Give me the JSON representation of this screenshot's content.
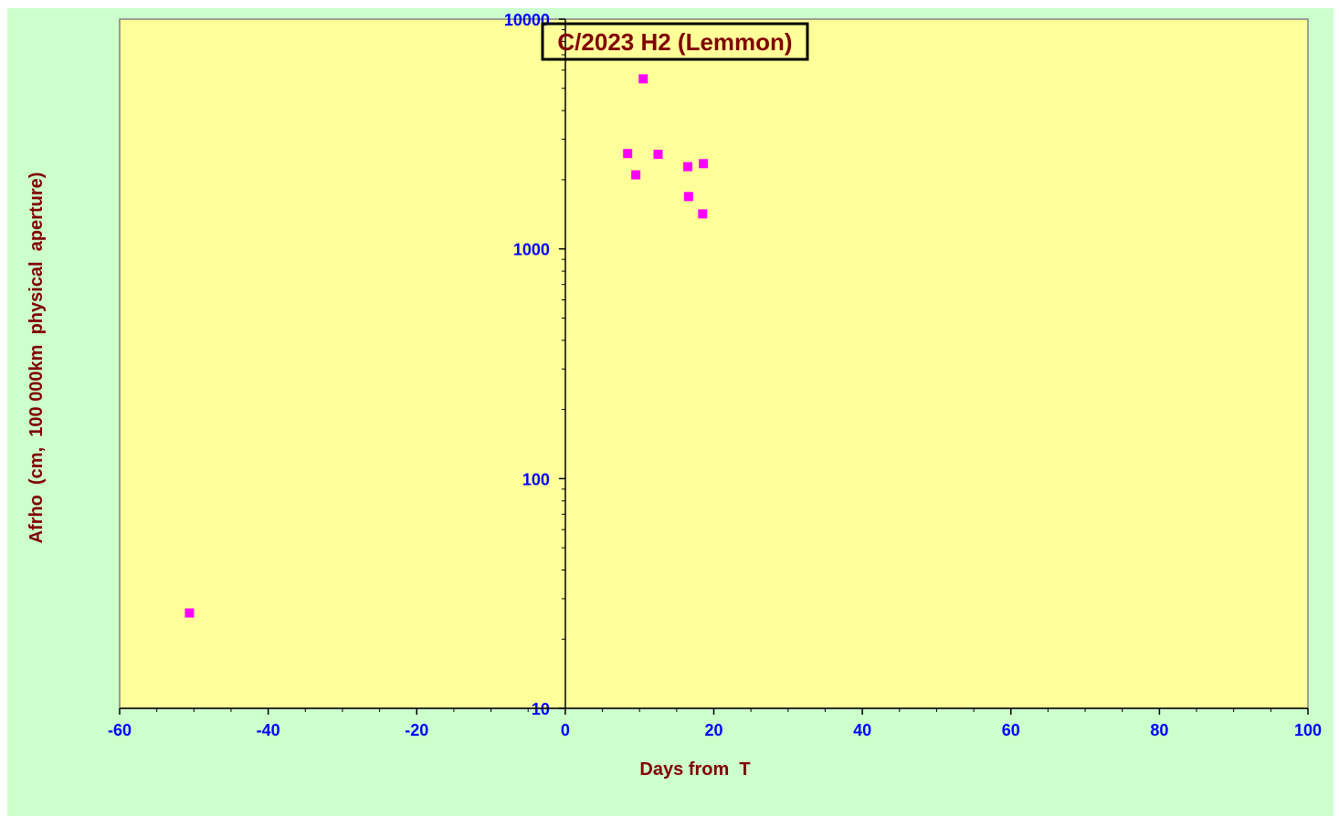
{
  "colors": {
    "outer_background": "#ccffcc",
    "plot_background": "#ffff99",
    "axis_line": "#000000",
    "plot_border": "#808080",
    "tick_label": "#0000ff",
    "axis_title": "#800000",
    "title_text": "#800000",
    "marker": "#ff00ff"
  },
  "chart_data": {
    "type": "scatter",
    "title": "C/2023 H2 (Lemmon)",
    "xlabel": "Days from  T",
    "ylabel": "Afrho  (cm,  100 000km  physical  aperture)",
    "xlim": [
      -60,
      100
    ],
    "ylim": [
      10,
      10000
    ],
    "y_scale": "log",
    "x_ticks": [
      "-60",
      "-40",
      "-20",
      "0",
      "20",
      "40",
      "60",
      "80",
      "100"
    ],
    "y_ticks": [
      "10",
      "100",
      "1000",
      "10000"
    ],
    "grid": false,
    "legend": "none",
    "marker": "square",
    "series": [
      {
        "x": [
          -50.6,
          8.4,
          9.5,
          10.5,
          12.5,
          16.5,
          16.6,
          18.5,
          18.6
        ],
        "y": [
          26,
          2600,
          2100,
          5500,
          2580,
          2280,
          1690,
          1420,
          2350
        ]
      }
    ]
  }
}
